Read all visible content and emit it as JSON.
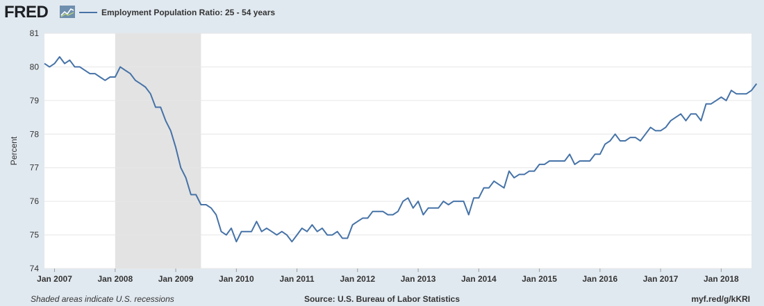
{
  "header": {
    "logo_text": "FRED",
    "legend_label": "Employment Population Ratio: 25 - 54 years"
  },
  "colors": {
    "series": "#4572a7",
    "recession": "#e3e3e3",
    "grid": "#e6e6e6",
    "plot_bg": "#ffffff",
    "page_bg": "#e1e9f0"
  },
  "footer": {
    "left": "Shaded areas indicate U.S. recessions",
    "center": "Source: U.S. Bureau of Labor Statistics",
    "right": "myf.red/g/kKRI"
  },
  "chart_data": {
    "type": "line",
    "ylabel": "Percent",
    "ylim": [
      74,
      81
    ],
    "yticks": [
      "74",
      "75",
      "76",
      "77",
      "78",
      "79",
      "80",
      "81"
    ],
    "xlim": [
      "2006-11",
      "2018-07"
    ],
    "xtick_labels": [
      "Jan 2007",
      "Jan 2008",
      "Jan 2009",
      "Jan 2010",
      "Jan 2011",
      "Jan 2012",
      "Jan 2013",
      "Jan 2014",
      "Jan 2015",
      "Jan 2016",
      "Jan 2017",
      "Jan 2018"
    ],
    "xtick_dates": [
      "2007-01",
      "2008-01",
      "2009-01",
      "2010-01",
      "2011-01",
      "2012-01",
      "2013-01",
      "2014-01",
      "2015-01",
      "2016-01",
      "2017-01",
      "2018-01"
    ],
    "grid": "horizontal",
    "recessions": [
      {
        "start": "2008-01",
        "end": "2009-06"
      }
    ],
    "series": [
      {
        "name": "Employment Population Ratio: 25 - 54 years",
        "start": "2006-11",
        "frequency": "monthly",
        "values": [
          80.1,
          80.0,
          80.1,
          80.3,
          80.1,
          80.2,
          80.0,
          80.0,
          79.9,
          79.8,
          79.8,
          79.7,
          79.6,
          79.7,
          79.7,
          80.0,
          79.9,
          79.8,
          79.6,
          79.5,
          79.4,
          79.2,
          78.8,
          78.8,
          78.4,
          78.1,
          77.6,
          77.0,
          76.7,
          76.2,
          76.2,
          75.9,
          75.9,
          75.8,
          75.6,
          75.1,
          75.0,
          75.2,
          74.8,
          75.1,
          75.1,
          75.1,
          75.4,
          75.1,
          75.2,
          75.1,
          75.0,
          75.1,
          75.0,
          74.8,
          75.0,
          75.2,
          75.1,
          75.3,
          75.1,
          75.2,
          75.0,
          75.0,
          75.1,
          74.9,
          74.9,
          75.3,
          75.4,
          75.5,
          75.5,
          75.7,
          75.7,
          75.7,
          75.6,
          75.6,
          75.7,
          76.0,
          76.1,
          75.8,
          76.0,
          75.6,
          75.8,
          75.8,
          75.8,
          76.0,
          75.9,
          76.0,
          76.0,
          76.0,
          75.6,
          76.1,
          76.1,
          76.4,
          76.4,
          76.6,
          76.5,
          76.4,
          76.9,
          76.7,
          76.8,
          76.8,
          76.9,
          76.9,
          77.1,
          77.1,
          77.2,
          77.2,
          77.2,
          77.2,
          77.4,
          77.1,
          77.2,
          77.2,
          77.2,
          77.4,
          77.4,
          77.7,
          77.8,
          78.0,
          77.8,
          77.8,
          77.9,
          77.9,
          77.8,
          78.0,
          78.2,
          78.1,
          78.1,
          78.2,
          78.4,
          78.5,
          78.6,
          78.4,
          78.6,
          78.6,
          78.4,
          78.9,
          78.9,
          79.0,
          79.1,
          79.0,
          79.3,
          79.2,
          79.2,
          79.2,
          79.3,
          79.5
        ]
      }
    ]
  }
}
